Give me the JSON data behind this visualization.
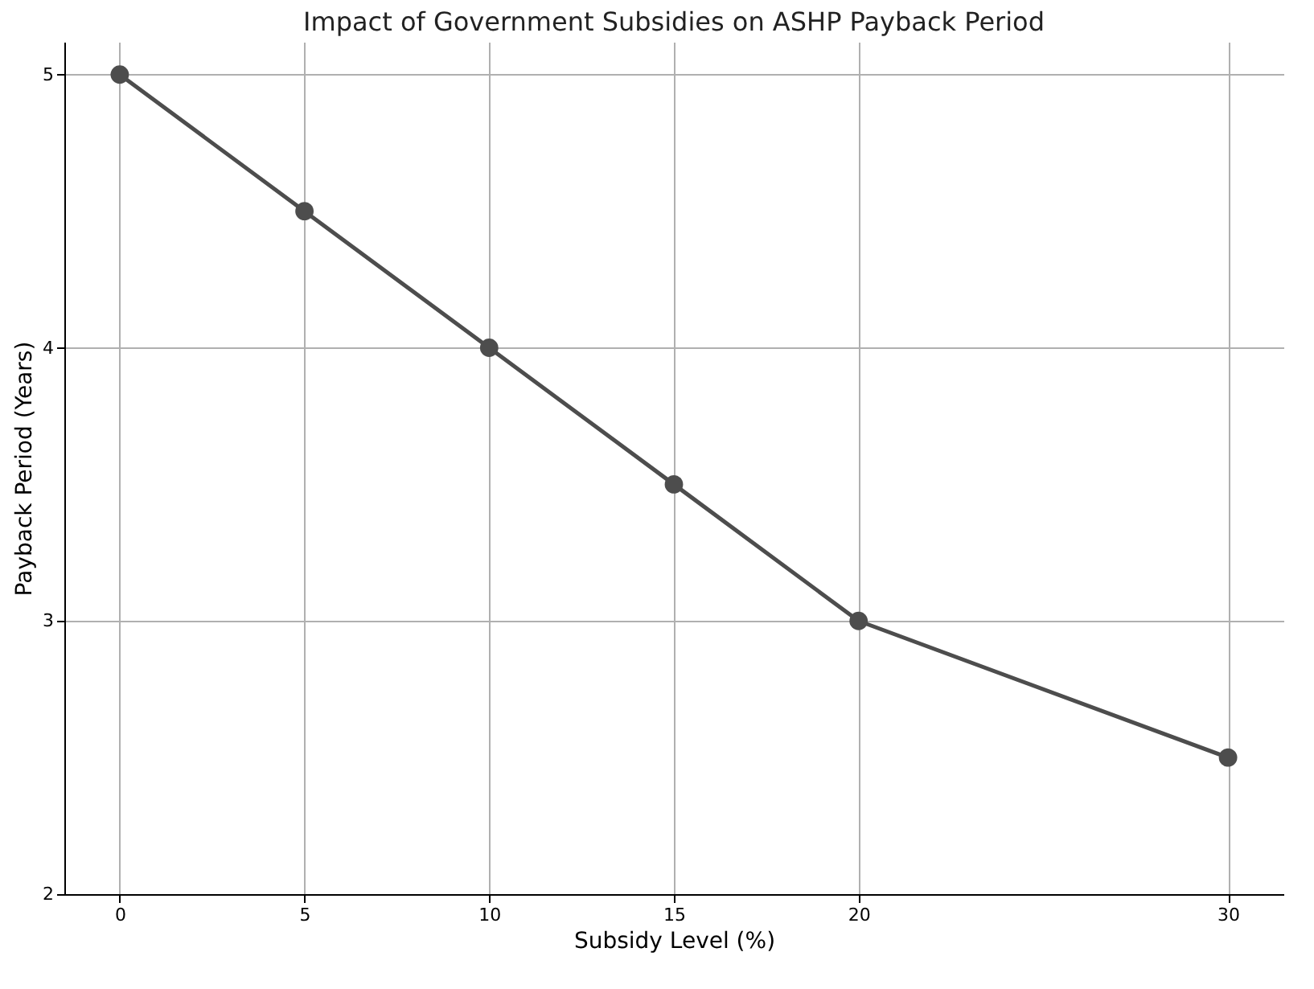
{
  "chart_data": {
    "type": "line",
    "title": "Impact of Government Subsidies on ASHP Payback Period",
    "xlabel": "Subsidy Level (%)",
    "ylabel": "Payback Period (Years)",
    "x": [
      0,
      5,
      10,
      15,
      20,
      30
    ],
    "series": [
      {
        "color": "#4d4d4d",
        "values": [
          5,
          4.5,
          4,
          3.5,
          3,
          2.5
        ]
      }
    ],
    "xlim": [
      -1.5,
      31.5
    ],
    "xticks": [
      0,
      5,
      10,
      15,
      20,
      30
    ],
    "ylim": [
      2,
      5.12
    ],
    "yticks": [
      2,
      3,
      4,
      5
    ],
    "grid": true,
    "marker": "circle",
    "line_style": "solid"
  }
}
